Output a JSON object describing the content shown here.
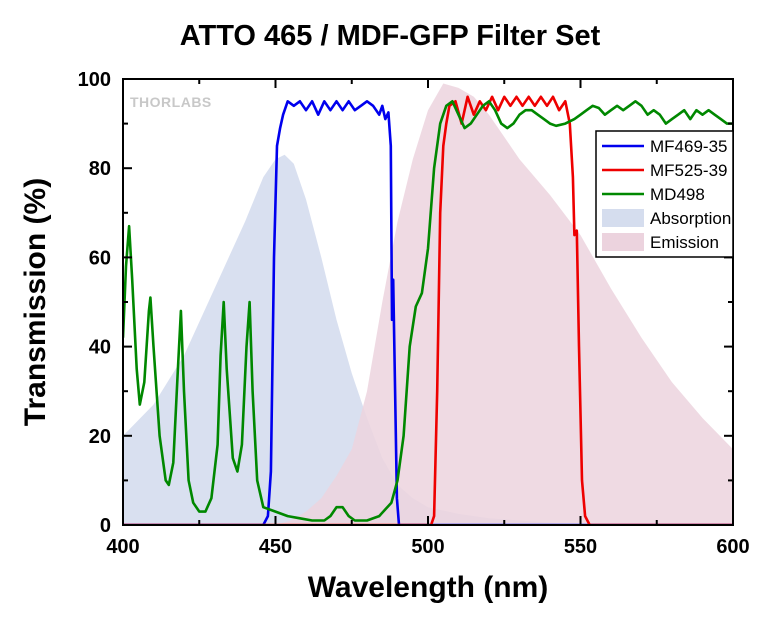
{
  "chart_data": {
    "type": "line",
    "title": "ATTO 465 / MDF-GFP Filter Set",
    "xlabel": "Wavelength (nm)",
    "ylabel": "Transmission (%)",
    "xlim": [
      400,
      600
    ],
    "ylim": [
      0,
      100
    ],
    "x_ticks": [
      "400",
      "450",
      "500",
      "550",
      "600"
    ],
    "y_ticks": [
      "0",
      "20",
      "40",
      "60",
      "80",
      "100"
    ],
    "grid": false,
    "legend_position": "top-right",
    "logo": "THORLABS",
    "series": [
      {
        "name": "MF469-35",
        "kind": "line",
        "color": "#0000ee",
        "points": [
          [
            400,
            0
          ],
          [
            446,
            0
          ],
          [
            447.5,
            2
          ],
          [
            448.5,
            12
          ],
          [
            449.5,
            60
          ],
          [
            450.5,
            85
          ],
          [
            451.5,
            89
          ],
          [
            452.5,
            92
          ],
          [
            454,
            95
          ],
          [
            456,
            94
          ],
          [
            458,
            95
          ],
          [
            460,
            93
          ],
          [
            462,
            95
          ],
          [
            464,
            92
          ],
          [
            466,
            95
          ],
          [
            468,
            93
          ],
          [
            470,
            95
          ],
          [
            472,
            93
          ],
          [
            474,
            95
          ],
          [
            476,
            93
          ],
          [
            478,
            94
          ],
          [
            480,
            95
          ],
          [
            482,
            94
          ],
          [
            484,
            92
          ],
          [
            485,
            94
          ],
          [
            486,
            91
          ],
          [
            487,
            92.5
          ],
          [
            487.8,
            85
          ],
          [
            488.2,
            46
          ],
          [
            488.6,
            55
          ],
          [
            489.2,
            30
          ],
          [
            489.8,
            6
          ],
          [
            490.5,
            0
          ],
          [
            600,
            0
          ]
        ]
      },
      {
        "name": "MF525-39",
        "kind": "line",
        "color": "#ee0000",
        "points": [
          [
            400,
            0
          ],
          [
            501,
            0
          ],
          [
            502,
            2
          ],
          [
            503,
            30
          ],
          [
            504,
            70
          ],
          [
            505,
            85
          ],
          [
            506,
            90
          ],
          [
            507,
            94
          ],
          [
            509,
            95
          ],
          [
            511,
            90
          ],
          [
            513,
            96
          ],
          [
            515,
            92
          ],
          [
            517,
            95
          ],
          [
            519,
            93
          ],
          [
            521,
            96
          ],
          [
            523,
            93
          ],
          [
            525,
            96
          ],
          [
            527,
            94
          ],
          [
            529,
            96
          ],
          [
            531,
            94
          ],
          [
            533,
            96
          ],
          [
            535,
            94
          ],
          [
            537,
            96
          ],
          [
            539,
            94
          ],
          [
            541,
            96
          ],
          [
            543,
            93
          ],
          [
            545,
            95
          ],
          [
            546.5,
            90
          ],
          [
            547.5,
            78
          ],
          [
            548,
            65
          ],
          [
            548.8,
            66
          ],
          [
            549.5,
            40
          ],
          [
            550.5,
            10
          ],
          [
            551.5,
            2
          ],
          [
            553,
            0
          ],
          [
            600,
            0
          ]
        ]
      },
      {
        "name": "MD498",
        "kind": "line",
        "color": "#008800",
        "points": [
          [
            400,
            42
          ],
          [
            401,
            58
          ],
          [
            402,
            67
          ],
          [
            403,
            55
          ],
          [
            404.5,
            35
          ],
          [
            405.5,
            27
          ],
          [
            407,
            32
          ],
          [
            408.5,
            48
          ],
          [
            409,
            51
          ],
          [
            410,
            40
          ],
          [
            412,
            20
          ],
          [
            414,
            10
          ],
          [
            415,
            9
          ],
          [
            416.5,
            14
          ],
          [
            418,
            35
          ],
          [
            419,
            48
          ],
          [
            420,
            30
          ],
          [
            421.5,
            10
          ],
          [
            423,
            5
          ],
          [
            425,
            3
          ],
          [
            427,
            3
          ],
          [
            429,
            6
          ],
          [
            431,
            18
          ],
          [
            432,
            38
          ],
          [
            433,
            50
          ],
          [
            434,
            35
          ],
          [
            436,
            15
          ],
          [
            437.5,
            12
          ],
          [
            439,
            18
          ],
          [
            440.5,
            40
          ],
          [
            441.5,
            50
          ],
          [
            442.5,
            30
          ],
          [
            444,
            10
          ],
          [
            446,
            4
          ],
          [
            450,
            3
          ],
          [
            454,
            2
          ],
          [
            458,
            1.5
          ],
          [
            462,
            1
          ],
          [
            466,
            1
          ],
          [
            468,
            2
          ],
          [
            470,
            4
          ],
          [
            472,
            4
          ],
          [
            474,
            2
          ],
          [
            476,
            1
          ],
          [
            480,
            1
          ],
          [
            484,
            2
          ],
          [
            488,
            5
          ],
          [
            490,
            10
          ],
          [
            492,
            20
          ],
          [
            494,
            40
          ],
          [
            496,
            49
          ],
          [
            498,
            52
          ],
          [
            500,
            62
          ],
          [
            502,
            80
          ],
          [
            504,
            90
          ],
          [
            506,
            94
          ],
          [
            508,
            95
          ],
          [
            510,
            92
          ],
          [
            512,
            89
          ],
          [
            514,
            90
          ],
          [
            516,
            92
          ],
          [
            518,
            94
          ],
          [
            520,
            95
          ],
          [
            522,
            93
          ],
          [
            524,
            90
          ],
          [
            526,
            89
          ],
          [
            528,
            90
          ],
          [
            530,
            92
          ],
          [
            532,
            93
          ],
          [
            534,
            93
          ],
          [
            536,
            92
          ],
          [
            538,
            91
          ],
          [
            540,
            90
          ],
          [
            542,
            89.5
          ],
          [
            545,
            90
          ],
          [
            548,
            91
          ],
          [
            550,
            92
          ],
          [
            552,
            93
          ],
          [
            554,
            94
          ],
          [
            556,
            93.5
          ],
          [
            558,
            92
          ],
          [
            560,
            93
          ],
          [
            562,
            94
          ],
          [
            564,
            93
          ],
          [
            566,
            94
          ],
          [
            568,
            95
          ],
          [
            570,
            94
          ],
          [
            572,
            92
          ],
          [
            574,
            93
          ],
          [
            576,
            92
          ],
          [
            578,
            90
          ],
          [
            580,
            91
          ],
          [
            582,
            92
          ],
          [
            584,
            93
          ],
          [
            586,
            91
          ],
          [
            588,
            93
          ],
          [
            590,
            92
          ],
          [
            592,
            93
          ],
          [
            594,
            92
          ],
          [
            596,
            91
          ],
          [
            598,
            90
          ],
          [
            600,
            90
          ]
        ]
      },
      {
        "name": "Absorption",
        "kind": "area",
        "color": "#d5ddee",
        "points": [
          [
            400,
            20
          ],
          [
            410,
            27
          ],
          [
            420,
            38
          ],
          [
            430,
            53
          ],
          [
            440,
            68
          ],
          [
            446,
            78
          ],
          [
            450,
            82
          ],
          [
            453,
            83
          ],
          [
            456,
            81
          ],
          [
            460,
            73
          ],
          [
            465,
            60
          ],
          [
            470,
            46
          ],
          [
            475,
            34
          ],
          [
            480,
            24
          ],
          [
            485,
            15
          ],
          [
            490,
            9
          ],
          [
            495,
            6
          ],
          [
            500,
            4
          ],
          [
            510,
            2.5
          ],
          [
            520,
            1.5
          ],
          [
            530,
            1
          ],
          [
            540,
            0.5
          ],
          [
            550,
            0
          ],
          [
            600,
            0
          ]
        ]
      },
      {
        "name": "Emission",
        "kind": "area",
        "color": "#ecd3de",
        "points": [
          [
            400,
            0
          ],
          [
            450,
            0
          ],
          [
            455,
            1
          ],
          [
            460,
            3
          ],
          [
            465,
            6
          ],
          [
            470,
            11
          ],
          [
            475,
            17
          ],
          [
            480,
            30
          ],
          [
            485,
            50
          ],
          [
            490,
            68
          ],
          [
            495,
            82
          ],
          [
            500,
            93
          ],
          [
            505,
            99
          ],
          [
            510,
            98
          ],
          [
            515,
            96
          ],
          [
            520,
            92
          ],
          [
            525,
            87
          ],
          [
            530,
            82
          ],
          [
            540,
            74
          ],
          [
            550,
            65
          ],
          [
            560,
            53
          ],
          [
            570,
            42
          ],
          [
            580,
            32
          ],
          [
            590,
            24
          ],
          [
            600,
            17
          ]
        ]
      }
    ]
  }
}
